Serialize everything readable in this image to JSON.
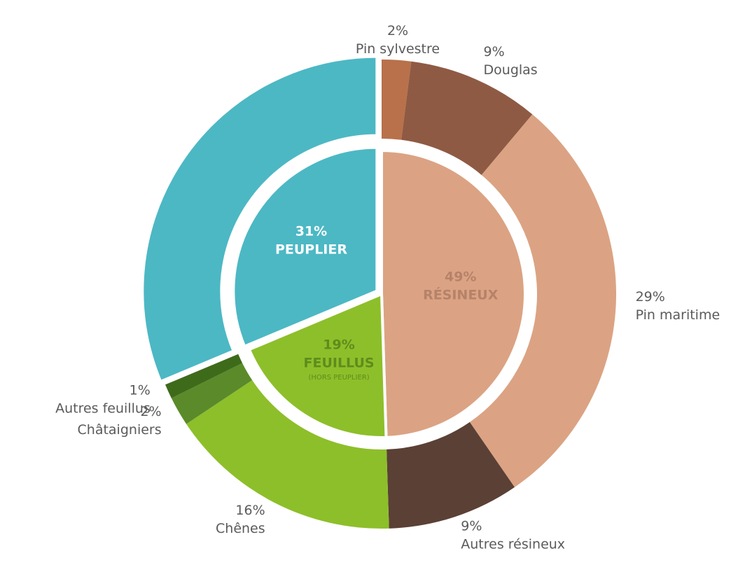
{
  "chart_data": {
    "type": "sunburst",
    "inner": {
      "categories": [
        "RÉSINEUX",
        "FEUILLUS",
        "PEUPLIER"
      ],
      "values": [
        49,
        19,
        31
      ],
      "value_labels": [
        "49%",
        "19%",
        "31%"
      ],
      "colors": [
        "#dba383",
        "#8dbf2a",
        "#4cb8c4"
      ],
      "text_colors": [
        "#b5826a",
        "#5e8c1c",
        "#ffffff"
      ],
      "notes": [
        null,
        "(HORS PEUPLIER)",
        null
      ]
    },
    "outer": {
      "categories": [
        "Pin sylvestre",
        "Douglas",
        "Pin maritime",
        "Autres résineux",
        "Chênes",
        "Châtaigniers",
        "Autres feuillus"
      ],
      "parents": [
        0,
        0,
        0,
        0,
        1,
        1,
        1
      ],
      "values": [
        2,
        9,
        29,
        9,
        16,
        2,
        1
      ],
      "value_labels": [
        "2%",
        "9%",
        "29%",
        "9%",
        "16%",
        "2%",
        "1%"
      ],
      "colors": [
        "#b8714a",
        "#8f5a44",
        "#dba383",
        "#5b4035",
        "#8dbf2a",
        "#5b8a2a",
        "#3e6b1a"
      ]
    }
  }
}
